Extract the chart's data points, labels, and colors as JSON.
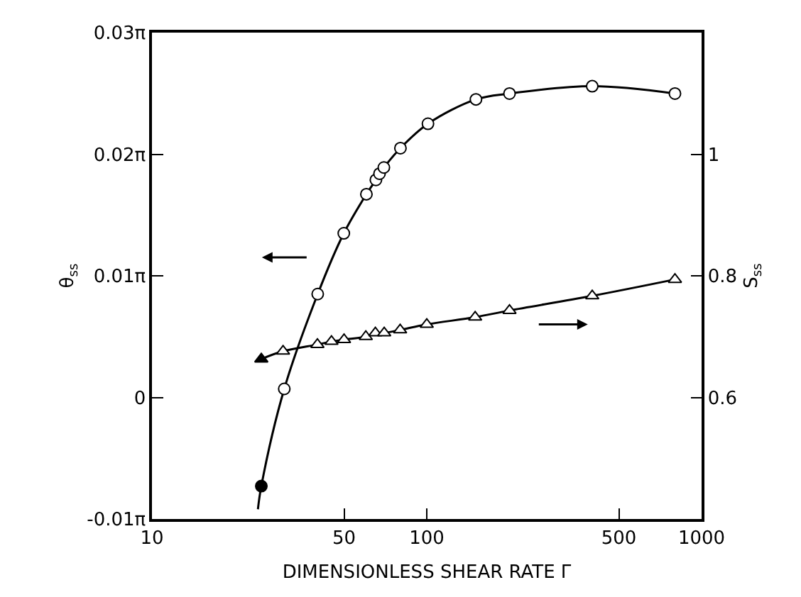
{
  "chart_data": {
    "type": "scatter",
    "xlabel": "DIMENSIONLESS SHEAR RATE Γ",
    "ylabel": "θ$_{ss}$",
    "y2label": "S$_{ss}$",
    "log": "x",
    "grid": false,
    "xlim": [
      10,
      1000
    ],
    "xticks": [
      10,
      50,
      100,
      500,
      1000
    ],
    "ylim": [
      -0.031416,
      0.094248
    ],
    "yticks": [
      {
        "value": -0.031416,
        "label": "-0.01π"
      },
      {
        "value": 0,
        "label": "0"
      },
      {
        "value": 0.031416,
        "label": "0.01π"
      },
      {
        "value": 0.062832,
        "label": "0.02π"
      },
      {
        "value": 0.094248,
        "label": "0.03π"
      }
    ],
    "y2lim": [
      0.4,
      1.2
    ],
    "y2ticks": [
      0.6,
      0.8,
      1.0
    ],
    "series": [
      {
        "type": "line",
        "marker": "none",
        "color": "#000000",
        "x": [
          24.3,
          25,
          30.3,
          40.1,
          49.9,
          60.3,
          65.3,
          67.3,
          69.8,
          80.2,
          101,
          151,
          200,
          400,
          800
        ],
        "values": [
          -0.0289,
          -0.0229,
          0.0022,
          0.0267,
          0.0424,
          0.0525,
          0.0562,
          0.0578,
          0.0594,
          0.0644,
          0.0707,
          0.077,
          0.0785,
          0.0804,
          0.0785
        ]
      },
      {
        "marker": "circle",
        "color": "#000000",
        "colors": [
          "#000000",
          "#ffffff",
          "#ffffff",
          "#ffffff",
          "#ffffff",
          "#ffffff",
          "#ffffff",
          "#ffffff",
          "#ffffff",
          "#ffffff",
          "#ffffff",
          "#ffffff",
          "#ffffff",
          "#ffffff"
        ],
        "x": [
          25,
          30.3,
          40.1,
          49.9,
          60.3,
          65.3,
          67.3,
          69.8,
          80.2,
          101,
          151,
          200,
          400,
          800
        ],
        "values": [
          -0.0229,
          0.0022,
          0.0267,
          0.0424,
          0.0525,
          0.0562,
          0.0578,
          0.0594,
          0.0644,
          0.0707,
          0.077,
          0.0785,
          0.0804,
          0.0785
        ]
      },
      {
        "type": "line",
        "marker": "none",
        "axis": "y2",
        "color": "#000000",
        "x": [
          25,
          30,
          40,
          45,
          50,
          60,
          65,
          70,
          80,
          100,
          150,
          200,
          400,
          800
        ],
        "values": [
          0.663,
          0.676,
          0.687,
          0.692,
          0.695,
          0.7,
          0.706,
          0.706,
          0.711,
          0.72,
          0.732,
          0.743,
          0.767,
          0.794
        ]
      },
      {
        "marker": "triangle",
        "axis": "y2",
        "color": "#000000",
        "colors": [
          "#000000",
          "#ffffff",
          "#ffffff",
          "#ffffff",
          "#ffffff",
          "#ffffff",
          "#ffffff",
          "#ffffff",
          "#ffffff",
          "#ffffff",
          "#ffffff",
          "#ffffff",
          "#ffffff",
          "#ffffff"
        ],
        "x": [
          25,
          30,
          40,
          45,
          50,
          60,
          65,
          70,
          80,
          100,
          150,
          200,
          400,
          800
        ],
        "values": [
          0.663,
          0.676,
          0.687,
          0.692,
          0.695,
          0.7,
          0.706,
          0.706,
          0.711,
          0.72,
          0.732,
          0.743,
          0.767,
          0.794
        ]
      }
    ]
  }
}
